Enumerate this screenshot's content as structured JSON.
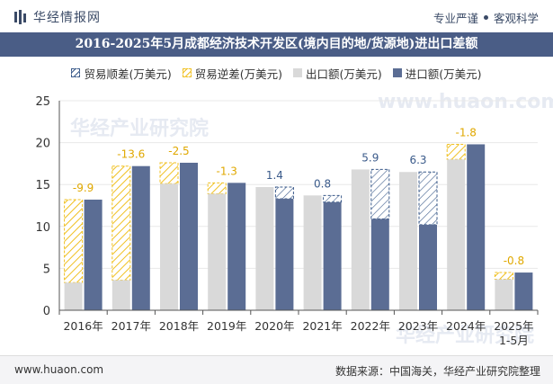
{
  "header": {
    "logo_text": "华经情报网",
    "tagline_left": "专业严谨",
    "tagline_right": "客观科学"
  },
  "title": "2016-2025年5月成都经济技术开发区(境内目的地/货源地)进出口差额",
  "watermarks": [
    "华经产业研究院",
    "www.huaon.com"
  ],
  "chart_data": {
    "type": "bar",
    "categories": [
      "2016年",
      "2017年",
      "2018年",
      "2019年",
      "2020年",
      "2021年",
      "2022年",
      "2023年",
      "2024年",
      "2025年\n1-5月"
    ],
    "series": [
      {
        "name": "出口额(万美元)",
        "values": [
          3.3,
          3.6,
          15.1,
          13.9,
          14.7,
          13.7,
          16.8,
          16.5,
          18.0,
          3.7
        ]
      },
      {
        "name": "进口额(万美元)",
        "values": [
          13.2,
          17.2,
          17.6,
          15.2,
          13.3,
          12.9,
          10.9,
          10.2,
          19.8,
          4.5
        ]
      }
    ],
    "balance": {
      "surplus_name": "贸易顺差(万美元)",
      "deficit_name": "贸易逆差(万美元)",
      "labels": [
        "-9.9",
        "-13.6",
        "-2.5",
        "-1.3",
        "1.4",
        "0.8",
        "5.9",
        "6.3",
        "-1.8",
        "-0.8"
      ],
      "values": [
        -9.9,
        -13.6,
        -2.5,
        -1.3,
        1.4,
        0.8,
        5.9,
        6.3,
        -1.8,
        -0.8
      ]
    },
    "ylim": [
      0,
      25
    ],
    "yticks": [
      0,
      5,
      10,
      15,
      20,
      25
    ],
    "colors": {
      "export": "#d9d9d9",
      "import": "#5b6d94",
      "surplus": "#3a5a8a",
      "deficit": "#f0c020",
      "surplus_label": "#3a5a8a",
      "deficit_label": "#e0a800"
    }
  },
  "footer": {
    "website": "www.huaon.com",
    "source": "数据来源：中国海关，华经产业研究院整理"
  }
}
